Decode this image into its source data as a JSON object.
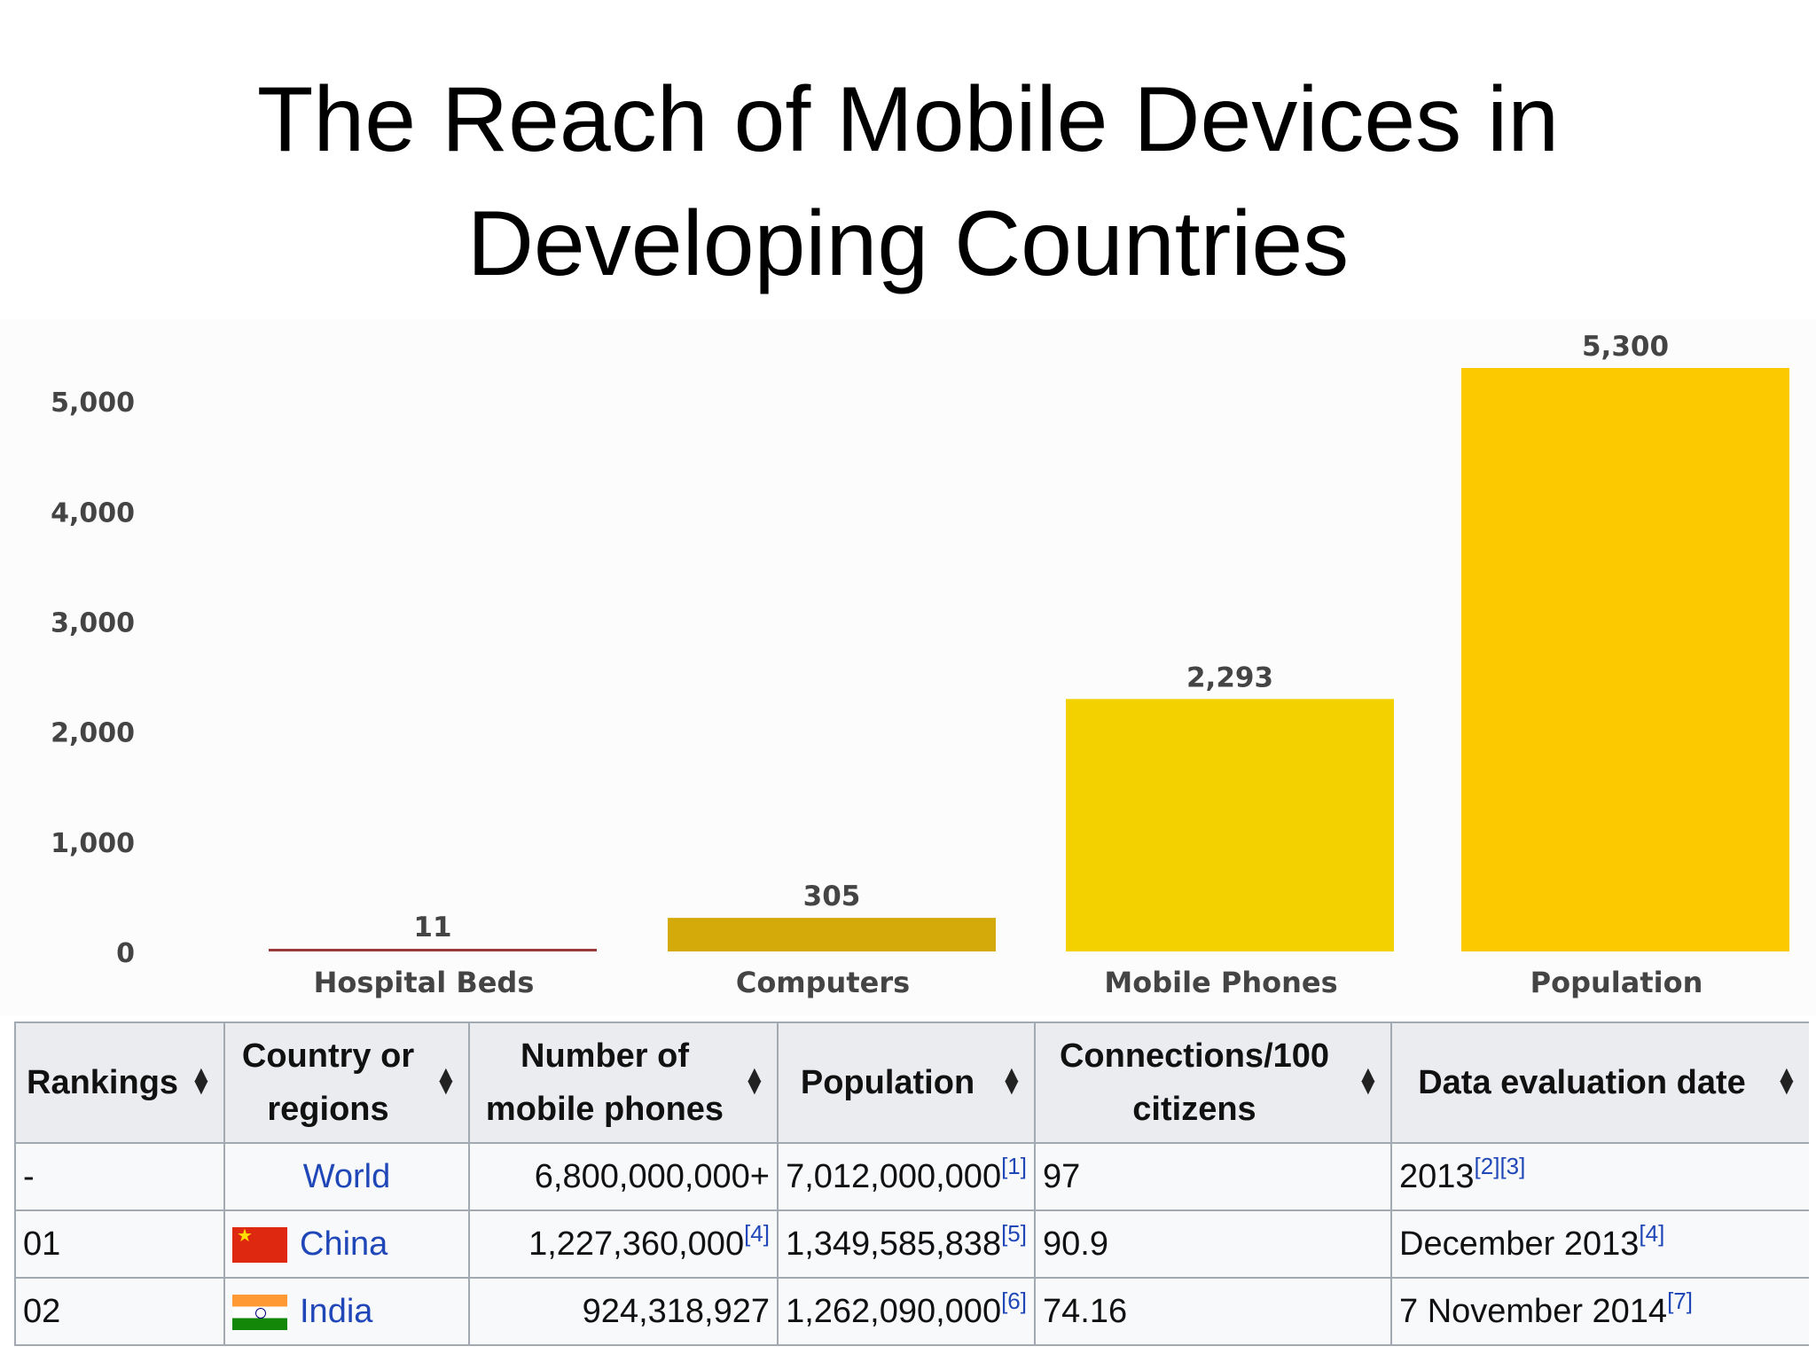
{
  "title": {
    "line1": "The Reach of Mobile Devices in",
    "line2": "Developing Countries"
  },
  "chart_data": {
    "type": "bar",
    "categories": [
      "Hospital Beds",
      "Computers",
      "Mobile Phones",
      "Population"
    ],
    "values": [
      11,
      305,
      2293,
      5300
    ],
    "value_labels": [
      "11",
      "305",
      "2,293",
      "5,300"
    ],
    "colors": [
      "#9b3a3a",
      "#d4aa0a",
      "#f3d000",
      "#fcc800"
    ],
    "yticks": [
      {
        "value": 0,
        "label": "0"
      },
      {
        "value": 1000,
        "label": "1,000"
      },
      {
        "value": 2000,
        "label": "2,000"
      },
      {
        "value": 3000,
        "label": "3,000"
      },
      {
        "value": 4000,
        "label": "4,000"
      },
      {
        "value": 5000,
        "label": "5,000"
      }
    ],
    "ylim": [
      0,
      5300
    ],
    "grid": false,
    "xlabel": "",
    "ylabel": ""
  },
  "table": {
    "headers": [
      "Rankings",
      "Country or regions",
      "Number of mobile phones",
      "Population",
      "Connections/100 citizens",
      "Data evaluation date"
    ],
    "sort_icon": "sort-arrows-icon",
    "rows": [
      {
        "rank": "-",
        "country": "World",
        "flag": "",
        "phones": "6,800,000,000+",
        "phones_ref": "",
        "population": "7,012,000,000",
        "population_ref": "[1]",
        "connections": "97",
        "date": "2013",
        "date_ref": "[2][3]"
      },
      {
        "rank": "01",
        "country": "China",
        "flag": "china-flag-icon",
        "phones": "1,227,360,000",
        "phones_ref": "[4]",
        "population": "1,349,585,838",
        "population_ref": "[5]",
        "connections": "90.9",
        "date": "December 2013",
        "date_ref": "[4]"
      },
      {
        "rank": "02",
        "country": "India",
        "flag": "india-flag-icon",
        "phones": "924,318,927",
        "phones_ref": "",
        "population": "1,262,090,000",
        "population_ref": "[6]",
        "connections": "74.16",
        "date": "7 November 2014",
        "date_ref": "[7]"
      }
    ]
  }
}
